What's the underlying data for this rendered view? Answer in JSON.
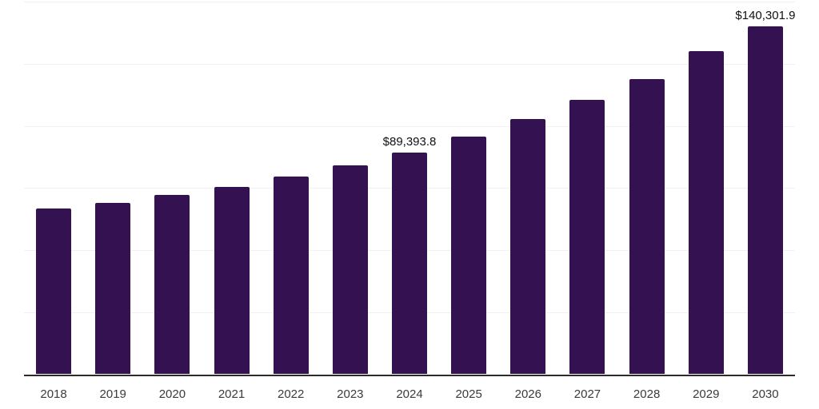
{
  "chart_data": {
    "type": "bar",
    "title": "",
    "xlabel": "",
    "ylabel": "",
    "legend_position": "none",
    "grid": true,
    "grid_step": 25000,
    "ylim": [
      0,
      150000
    ],
    "categories": [
      "2018",
      "2019",
      "2020",
      "2021",
      "2022",
      "2023",
      "2024",
      "2025",
      "2026",
      "2027",
      "2028",
      "2029",
      "2030"
    ],
    "values": [
      66900,
      68900,
      72400,
      75600,
      79800,
      84000,
      89393.8,
      95600,
      102800,
      110600,
      119000,
      130200,
      140301.9
    ],
    "value_labels": [
      null,
      null,
      null,
      null,
      null,
      null,
      "$89,393.8",
      null,
      null,
      null,
      null,
      null,
      "$140,301.9"
    ],
    "colors": {
      "bar": "#341150",
      "gridline": "#f1f1f4",
      "axis": "#2b2b2b",
      "tick_label": "#3a3a3a",
      "value_label": "#111111",
      "background": "#ffffff"
    }
  }
}
